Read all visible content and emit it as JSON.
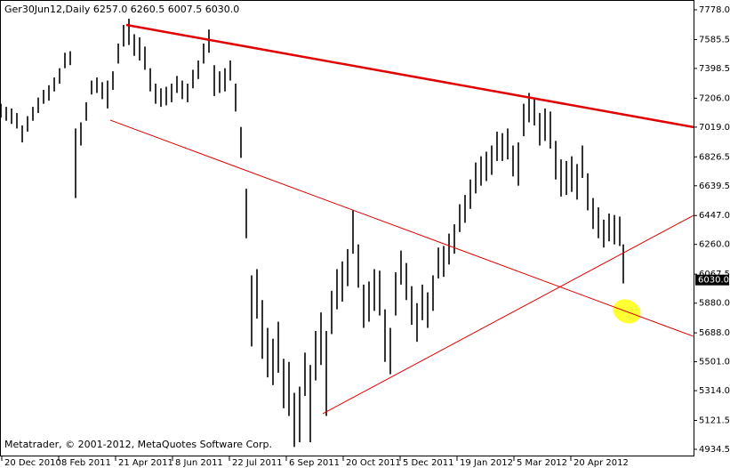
{
  "chart_data": {
    "type": "hlbar",
    "title": "Ger30Jun12,Daily  6257.0 6260.5 6007.5 6030.0",
    "footer": "Metatrader, © 2001-2012, MetaQuotes Software Corp.",
    "color": "#000000",
    "x": [
      0,
      3,
      6,
      9,
      12,
      15,
      18,
      21,
      24,
      27,
      30,
      33,
      36,
      39,
      42,
      45,
      48,
      51,
      54,
      57,
      60,
      63,
      66,
      69,
      72,
      75,
      78,
      81,
      84,
      87,
      90,
      93,
      96,
      99,
      102,
      105,
      108,
      111,
      114,
      117,
      120,
      123,
      126,
      129,
      132,
      135,
      138,
      141,
      144,
      147,
      150,
      153,
      156,
      159,
      162,
      165,
      168,
      171,
      174,
      177,
      180,
      183,
      186,
      189,
      192,
      195,
      198,
      201,
      204,
      207,
      210,
      213,
      216,
      219,
      222,
      225,
      228,
      231,
      234,
      237,
      240,
      243,
      246,
      249,
      252,
      255,
      258,
      261,
      264,
      267,
      270,
      273,
      276,
      279,
      282,
      285,
      288,
      291,
      294,
      297,
      300,
      303,
      306,
      309,
      312,
      315,
      318,
      321,
      324,
      327,
      330,
      333,
      336,
      339,
      342,
      345,
      348,
      350
    ],
    "high": [
      7170,
      7150,
      7140,
      7110,
      7030,
      7090,
      7150,
      7210,
      7260,
      7290,
      7340,
      7400,
      7500,
      7510,
      7010,
      7050,
      7180,
      7320,
      7340,
      7310,
      7320,
      7380,
      7560,
      7680,
      7720,
      7620,
      7600,
      7540,
      7400,
      7300,
      7270,
      7280,
      7300,
      7350,
      7320,
      7300,
      7390,
      7450,
      7560,
      7650,
      7420,
      7380,
      7400,
      7450,
      7300,
      7020,
      6620,
      6060,
      6100,
      5900,
      5720,
      5650,
      5760,
      5520,
      5500,
      5300,
      5340,
      5560,
      5480,
      5700,
      5820,
      5700,
      5960,
      6100,
      6150,
      6230,
      6480,
      6260,
      6000,
      6020,
      6100,
      6090,
      5840,
      5720,
      6080,
      6220,
      6140,
      5990,
      5880,
      6000,
      5950,
      6060,
      6240,
      6250,
      6330,
      6390,
      6520,
      6580,
      6680,
      6790,
      6830,
      6860,
      6900,
      6990,
      6980,
      7010,
      6900,
      6920,
      7170,
      7240,
      7200,
      7110,
      7140,
      7120,
      6930,
      6810,
      6800,
      6830,
      6780,
      6900,
      6720,
      6560,
      6500,
      6420,
      6460,
      6450,
      6440,
      6260.5
    ],
    "low": [
      7080,
      7060,
      7040,
      7010,
      6920,
      6990,
      7060,
      7110,
      7170,
      7190,
      7250,
      7300,
      7400,
      7420,
      6560,
      6900,
      7060,
      7230,
      7240,
      7200,
      7140,
      7260,
      7430,
      7540,
      7550,
      7480,
      7450,
      7390,
      7250,
      7170,
      7150,
      7160,
      7180,
      7240,
      7200,
      7180,
      7270,
      7330,
      7430,
      7500,
      7220,
      7240,
      7250,
      7320,
      7120,
      6820,
      6300,
      5600,
      5780,
      5520,
      5400,
      5350,
      5430,
      5200,
      5150,
      4950,
      4980,
      5280,
      4980,
      5380,
      5480,
      5150,
      5680,
      5840,
      5890,
      5990,
      6200,
      5980,
      5720,
      5760,
      5830,
      5800,
      5500,
      5420,
      5800,
      6000,
      5900,
      5740,
      5630,
      5770,
      5720,
      5830,
      6040,
      6050,
      6130,
      6200,
      6340,
      6400,
      6490,
      6590,
      6640,
      6670,
      6710,
      6800,
      6800,
      6810,
      6700,
      6640,
      6960,
      7050,
      7030,
      6900,
      6930,
      6880,
      6680,
      6570,
      6580,
      6600,
      6550,
      6690,
      6480,
      6360,
      6300,
      6240,
      6280,
      6260,
      6250,
      6007.5
    ],
    "xlim": [
      -0.5,
      389.5
    ],
    "xticks": [
      {
        "value": 0.5,
        "label": "20 Dec 2010"
      },
      {
        "value": 32.5,
        "label": "8 Feb 2011"
      },
      {
        "value": 64.5,
        "label": "21 Apr 2011"
      },
      {
        "value": 96.5,
        "label": "8 Jun 2011"
      },
      {
        "value": 128.5,
        "label": "22 Jul 2011"
      },
      {
        "value": 160.5,
        "label": "6 Sep 2011"
      },
      {
        "value": 192.5,
        "label": "20 Oct 2011"
      },
      {
        "value": 224.5,
        "label": "5 Dec 2011"
      },
      {
        "value": 256.5,
        "label": "19 Jan 2012"
      },
      {
        "value": 288.5,
        "label": "5 Mar 2012"
      },
      {
        "value": 320.5,
        "label": "20 Apr 2012"
      }
    ],
    "ylim": [
      4888.4,
      7841.3
    ],
    "yticks": [
      {
        "value": 7778,
        "label": "7778.0"
      },
      7585.5,
      7398.5,
      {
        "value": 7206,
        "label": "7206.0"
      },
      {
        "value": 7019,
        "label": "7019.0"
      },
      6826.5,
      6639.5,
      {
        "value": 6447,
        "label": "6447.0"
      },
      {
        "value": 6260,
        "label": "6260.0"
      },
      6067.5,
      {
        "value": 5880,
        "label": "5880.0"
      },
      {
        "value": 5688,
        "label": "5688.0"
      },
      {
        "value": 5501,
        "label": "5501.0"
      },
      {
        "value": 5314,
        "label": "5314.0"
      },
      5121.5,
      4934.5
    ],
    "last_price": {
      "value": 6030,
      "label": "6030.0"
    },
    "trendlines": [
      {
        "color": "#e00000",
        "width": 2.5,
        "x": [
          70.5,
          389.5
        ],
        "y": [
          7680,
          7019
        ]
      },
      {
        "color": "#e00000",
        "width": 1,
        "x": [
          61.5,
          389.5
        ],
        "y": [
          7064,
          5665
        ]
      },
      {
        "color": "#e00000",
        "width": 1,
        "x": [
          181,
          389.5
        ],
        "y": [
          5165,
          6448
        ]
      }
    ]
  }
}
